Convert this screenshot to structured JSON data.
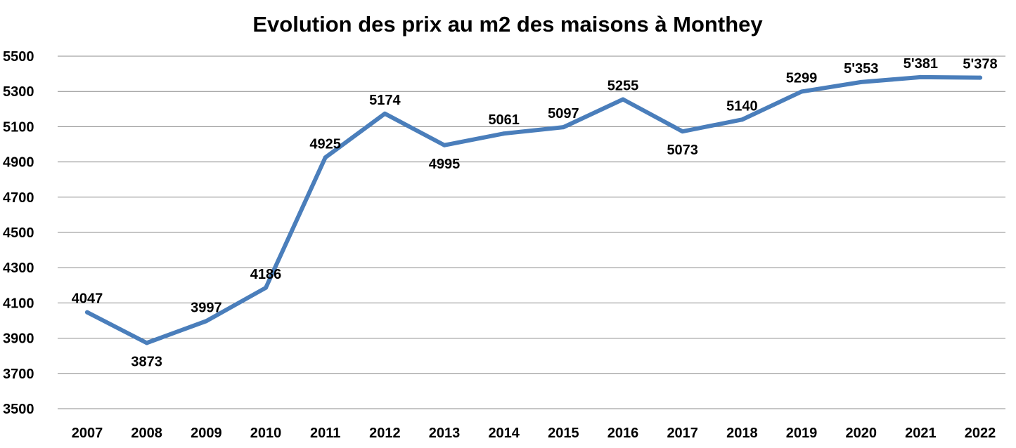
{
  "chart_data": {
    "type": "line",
    "title": "Evolution des prix au m2 des maisons à Monthey",
    "xlabel": "",
    "ylabel": "",
    "categories": [
      "2007",
      "2008",
      "2009",
      "2010",
      "2011",
      "2012",
      "2013",
      "2014",
      "2015",
      "2016",
      "2017",
      "2018",
      "2019",
      "2020",
      "2021",
      "2022"
    ],
    "series": [
      {
        "values": [
          4047,
          3873,
          3997,
          4186,
          4925,
          5174,
          4995,
          5061,
          5097,
          5255,
          5073,
          5140,
          5299,
          5353,
          5381,
          5378
        ],
        "data_labels": [
          "4047",
          "3873",
          "3997",
          "4186",
          "4925",
          "5174",
          "4995",
          "5061",
          "5097",
          "5255",
          "5073",
          "5140",
          "5299",
          "5'353",
          "5'381",
          "5'378"
        ],
        "label_position": [
          "above",
          "below",
          "above",
          "above",
          "above",
          "above",
          "below",
          "above",
          "above",
          "above",
          "below",
          "above",
          "above",
          "above",
          "above",
          "above"
        ],
        "color": "#4a7ebb"
      }
    ],
    "ylim": [
      3500,
      5500
    ],
    "yticks": [
      3500,
      3700,
      3900,
      4100,
      4300,
      4500,
      4700,
      4900,
      5100,
      5300,
      5500
    ],
    "grid": true,
    "legend": "none",
    "gridline_color": "#8c8c8c"
  }
}
